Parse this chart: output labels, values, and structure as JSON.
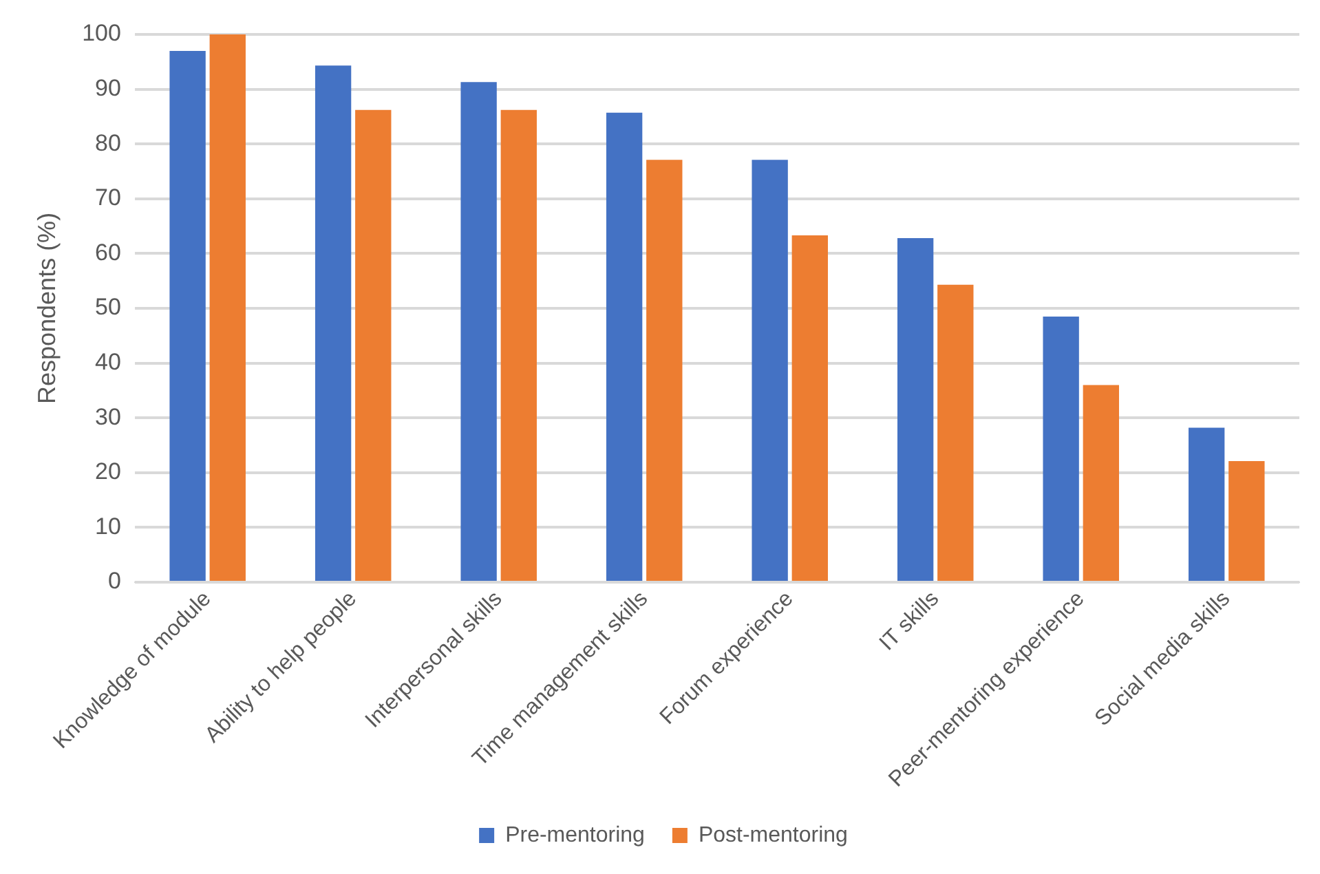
{
  "chart_data": {
    "type": "bar",
    "ylabel": "Respondents (%)",
    "categories": [
      "Knowledge of module",
      "Ability to help people",
      "Interpersonal skills",
      "Time management skills",
      "Forum experience",
      "IT skills",
      "Peer-mentoring experience",
      "Social media skills"
    ],
    "series": [
      {
        "name": "Pre-mentoring",
        "color": "#4472c4",
        "values": [
          97,
          94.3,
          91.3,
          85.7,
          77.1,
          62.8,
          48.5,
          28.2
        ]
      },
      {
        "name": "Post-mentoring",
        "color": "#ed7d31",
        "values": [
          100,
          86.2,
          86.2,
          77.1,
          63.3,
          54.3,
          36,
          22.1
        ]
      }
    ],
    "ylim": [
      0,
      100
    ],
    "yticks": [
      0,
      10,
      20,
      30,
      40,
      50,
      60,
      70,
      80,
      90,
      100
    ],
    "grid": "y",
    "legend": "bottom"
  }
}
